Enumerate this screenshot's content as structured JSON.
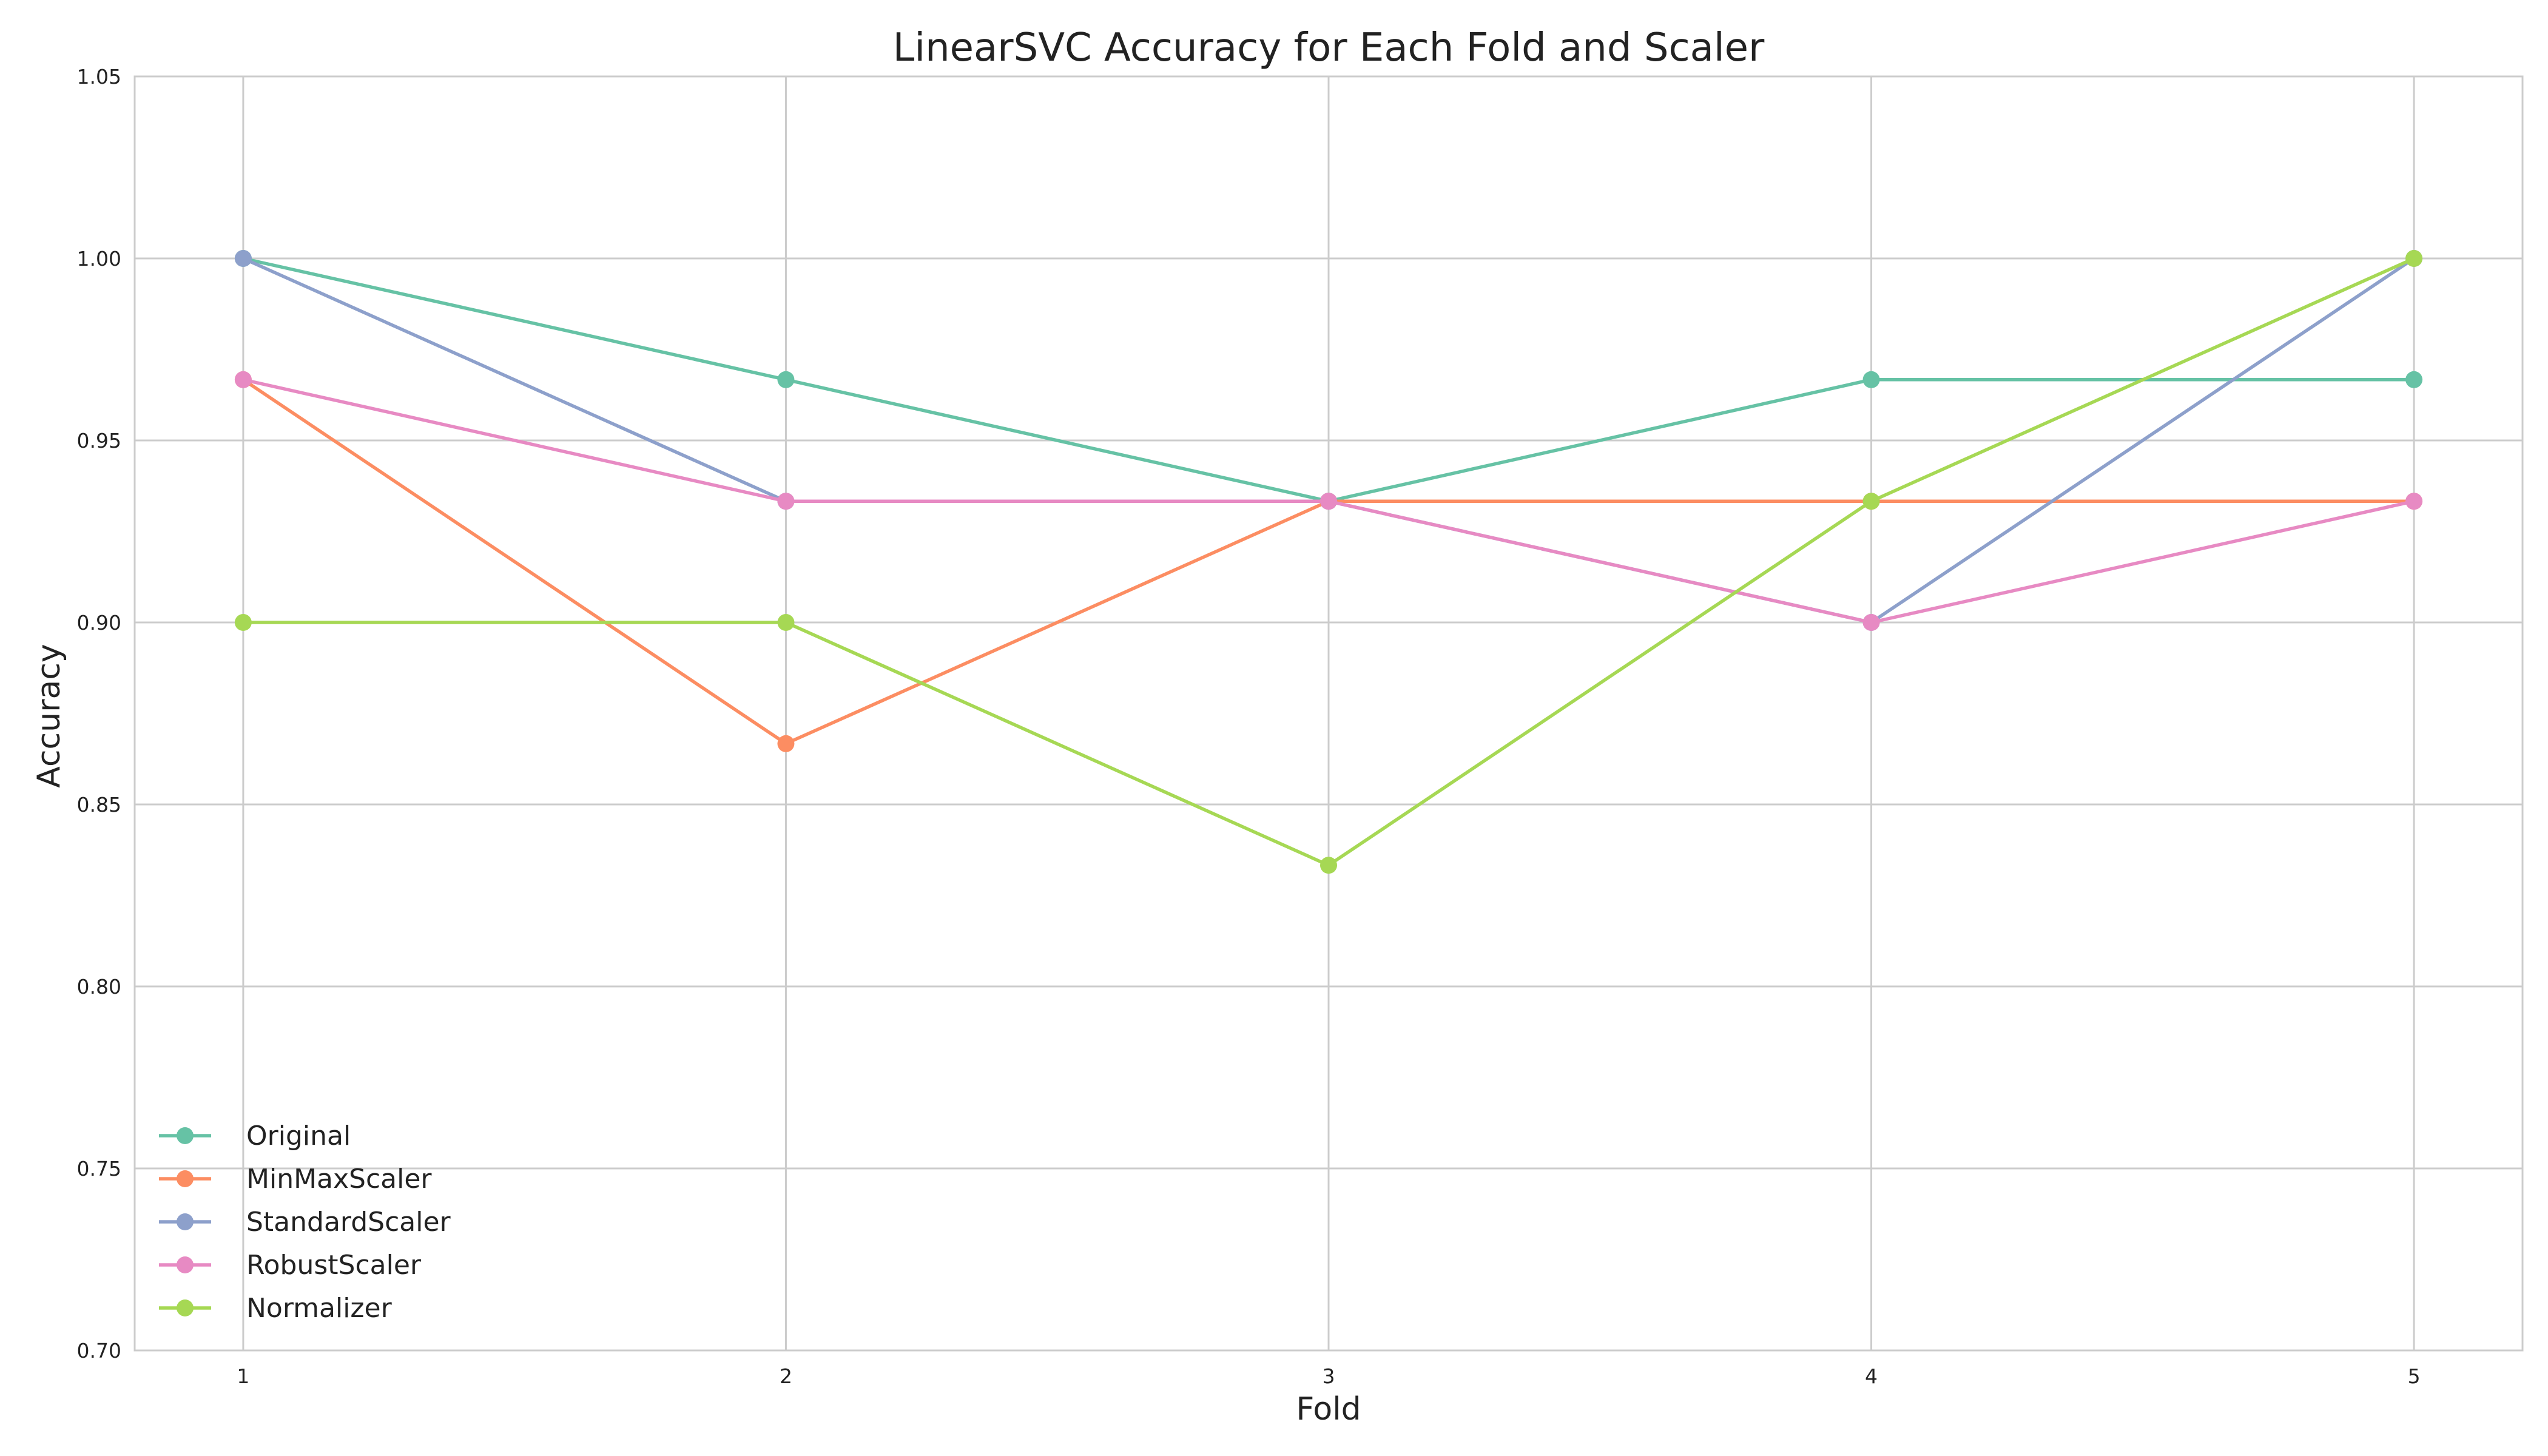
{
  "chart_data": {
    "type": "line",
    "title": "LinearSVC Accuracy for Each Fold and Scaler",
    "xlabel": "Fold",
    "ylabel": "Accuracy",
    "x": [
      1,
      2,
      3,
      4,
      5
    ],
    "xlim": [
      0.8,
      5.2
    ],
    "ylim": [
      0.7,
      1.05
    ],
    "yticks": [
      "0.70",
      "0.75",
      "0.80",
      "0.85",
      "0.90",
      "0.95",
      "1.00",
      "1.05"
    ],
    "xticks": [
      "1",
      "2",
      "3",
      "4",
      "5"
    ],
    "grid": true,
    "legend_position": "lower-left",
    "series": [
      {
        "name": "Original",
        "color": "#66c2a5",
        "values": [
          1.0,
          0.9667,
          0.9333,
          0.9667,
          0.9667
        ]
      },
      {
        "name": "MinMaxScaler",
        "color": "#fc8d62",
        "values": [
          0.9667,
          0.8667,
          0.9333,
          0.9333,
          0.9333
        ]
      },
      {
        "name": "StandardScaler",
        "color": "#8da0cb",
        "values": [
          1.0,
          0.9333,
          0.9333,
          0.9,
          1.0
        ]
      },
      {
        "name": "RobustScaler",
        "color": "#e78ac3",
        "values": [
          0.9667,
          0.9333,
          0.9333,
          0.9,
          0.9333
        ]
      },
      {
        "name": "Normalizer",
        "color": "#a6d854",
        "values": [
          0.9,
          0.9,
          0.8333,
          0.9333,
          1.0
        ]
      }
    ]
  }
}
